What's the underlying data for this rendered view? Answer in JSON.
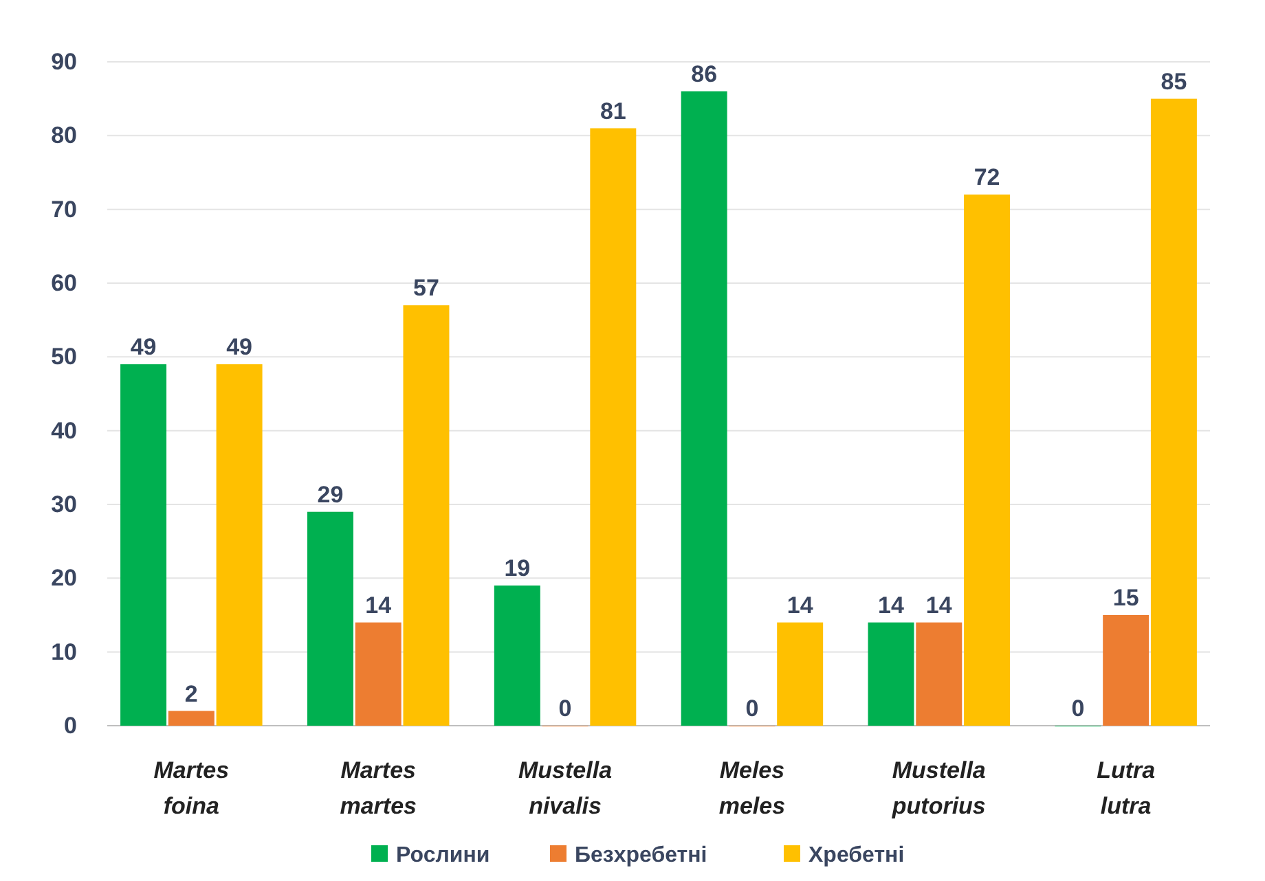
{
  "chart_data": {
    "type": "bar",
    "categories": [
      "Martes foina",
      "Martes martes",
      "Mustella nivalis",
      "Meles meles",
      "Mustella putorius",
      "Lutra lutra"
    ],
    "series": [
      {
        "name": "Рослини",
        "color": "#00b050",
        "values": [
          49,
          29,
          19,
          86,
          14,
          0
        ]
      },
      {
        "name": "Безхребетні",
        "color": "#ed7d31",
        "values": [
          2,
          14,
          0,
          0,
          14,
          15
        ]
      },
      {
        "name": "Хребетні",
        "color": "#ffc000",
        "values": [
          49,
          57,
          81,
          14,
          72,
          85
        ]
      }
    ],
    "ylim": [
      0,
      90
    ],
    "yticks": [
      0,
      10,
      20,
      30,
      40,
      50,
      60,
      70,
      80,
      90
    ],
    "grid": "y",
    "legend": "bottom",
    "data_labels": true
  }
}
